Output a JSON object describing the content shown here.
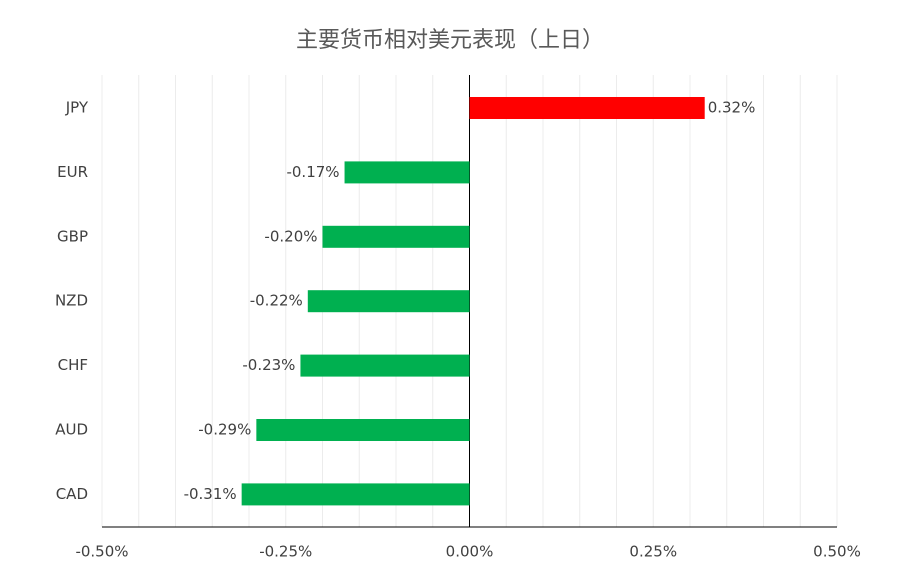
{
  "chart_data": {
    "type": "hbar",
    "title": "主要货币相对美元表现（上日）",
    "categories": [
      "JPY",
      "EUR",
      "GBP",
      "NZD",
      "CHF",
      "AUD",
      "CAD"
    ],
    "values": [
      0.32,
      -0.17,
      -0.2,
      -0.22,
      -0.23,
      -0.29,
      -0.31
    ],
    "value_labels": [
      "0.32%",
      "-0.17%",
      "-0.20%",
      "-0.22%",
      "-0.23%",
      "-0.29%",
      "-0.31%"
    ],
    "colors": [
      "#ff0000",
      "#00b050",
      "#00b050",
      "#00b050",
      "#00b050",
      "#00b050",
      "#00b050"
    ],
    "xlim": [
      -0.5,
      0.5
    ],
    "xticks": [
      {
        "value": -0.5,
        "label": "-0.50%"
      },
      {
        "value": -0.25,
        "label": "-0.25%"
      },
      {
        "value": 0,
        "label": "0.00%"
      },
      {
        "value": 0.25,
        "label": "0.25%"
      },
      {
        "value": 0.5,
        "label": "0.50%"
      }
    ],
    "minor_grid": [
      -0.45,
      -0.4,
      -0.35,
      -0.3,
      -0.2,
      -0.15,
      -0.1,
      -0.05,
      0.05,
      0.1,
      0.15,
      0.2,
      0.3,
      0.35,
      0.4,
      0.45
    ],
    "grid": true
  }
}
